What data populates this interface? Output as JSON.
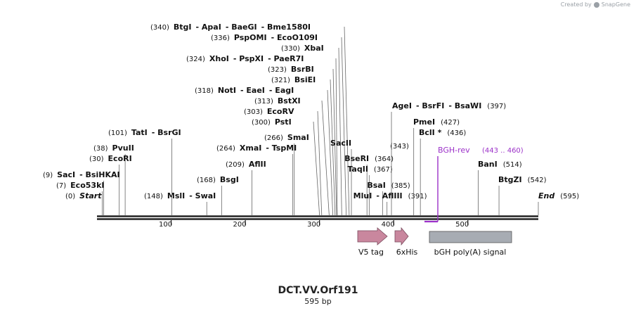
{
  "credit": {
    "text": "Created by",
    "brand": "SnapGene"
  },
  "map": {
    "name": "DCT.VV.Orf191",
    "length_label": "595 bp",
    "length": 595
  },
  "axis": {
    "ticks": [
      100,
      200,
      300,
      400,
      500
    ]
  },
  "sites": [
    {
      "pos": 340,
      "names": [
        "BtgI",
        "ApaI",
        "BaeGI",
        "Bme1580I"
      ]
    },
    {
      "pos": 336,
      "names": [
        "PspOMI",
        "EcoO109I"
      ]
    },
    {
      "pos": 330,
      "names": [
        "XbaI"
      ]
    },
    {
      "pos": 324,
      "names": [
        "XhoI",
        "PspXI",
        "PaeR7I"
      ]
    },
    {
      "pos": 323,
      "names": [
        "BsrBI"
      ]
    },
    {
      "pos": 321,
      "names": [
        "BsiEI"
      ]
    },
    {
      "pos": 318,
      "names": [
        "NotI",
        "EaeI",
        "EagI"
      ]
    },
    {
      "pos": 313,
      "names": [
        "BstXI"
      ]
    },
    {
      "pos": 303,
      "names": [
        "EcoRV"
      ]
    },
    {
      "pos": 300,
      "names": [
        "PstI"
      ]
    },
    {
      "pos": 266,
      "names": [
        "SmaI"
      ]
    },
    {
      "pos": 264,
      "names": [
        "XmaI",
        "TspMI"
      ]
    },
    {
      "pos": 209,
      "names": [
        "AflII"
      ]
    },
    {
      "pos": 168,
      "names": [
        "BsgI"
      ]
    },
    {
      "pos": 148,
      "names": [
        "MslI",
        "SwaI"
      ]
    },
    {
      "pos": 101,
      "names": [
        "TatI",
        "BsrGI"
      ]
    },
    {
      "pos": 38,
      "names": [
        "PvuII"
      ]
    },
    {
      "pos": 30,
      "names": [
        "EcoRI"
      ]
    },
    {
      "pos": 9,
      "names": [
        "SacI",
        "BsiHKAI"
      ]
    },
    {
      "pos": 7,
      "names": [
        "Eco53kI"
      ]
    },
    {
      "pos": 0,
      "names": [
        "Start"
      ],
      "italic": true
    },
    {
      "pos": 343,
      "names": [
        "SacII"
      ]
    },
    {
      "pos": 364,
      "names": [
        "BseRI"
      ]
    },
    {
      "pos": 367,
      "names": [
        "TaqII"
      ]
    },
    {
      "pos": 385,
      "names": [
        "BsaI"
      ]
    },
    {
      "pos": 391,
      "names": [
        "MluI",
        "AflIII"
      ]
    },
    {
      "pos": 397,
      "names": [
        "AgeI",
        "BsrFI",
        "BsaWI"
      ]
    },
    {
      "pos": 427,
      "names": [
        "PmeI"
      ]
    },
    {
      "pos": 436,
      "names": [
        "BclI *"
      ]
    },
    {
      "pos": 514,
      "names": [
        "BanI"
      ]
    },
    {
      "pos": 542,
      "names": [
        "BtgZI"
      ]
    },
    {
      "pos": 595,
      "names": [
        "End"
      ],
      "italic": true
    }
  ],
  "primer": {
    "name": "BGH-rev",
    "range": "(443 .. 460)",
    "color": "#9b30c8"
  },
  "features": [
    {
      "name": "V5 tag",
      "color": "#c9879e",
      "shape": "arrow"
    },
    {
      "name": "6xHis",
      "color": "#c9879e",
      "shape": "arrow"
    },
    {
      "name": "bGH poly(A) signal",
      "color": "#a7acb3",
      "shape": "box"
    }
  ]
}
